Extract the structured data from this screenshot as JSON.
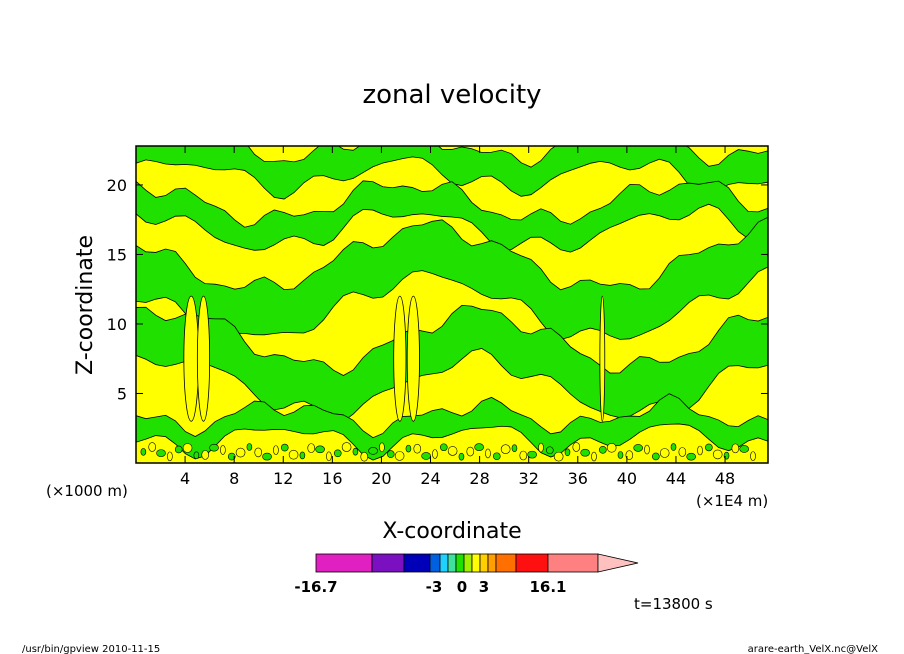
{
  "chart_data": {
    "type": "heatmap",
    "title": "zonal velocity",
    "xlabel": "X-coordinate",
    "ylabel": "Z-coordinate",
    "x_unit_left": "(×1000 m)",
    "x_unit_right": "(×1E4 m)",
    "xlim": [
      0,
      51.5
    ],
    "ylim": [
      0,
      22.8
    ],
    "xticks": [
      "4",
      "8",
      "12",
      "16",
      "20",
      "24",
      "28",
      "32",
      "36",
      "40",
      "44",
      "48"
    ],
    "yticks": [
      "5",
      "10",
      "15",
      "20"
    ],
    "colorbar": {
      "colors": [
        "#e020c0",
        "#7a10c0",
        "#0000b8",
        "#0060e0",
        "#20d0ff",
        "#40e0a0",
        "#20e000",
        "#a0f000",
        "#ffff00",
        "#ffd000",
        "#ffa000",
        "#ff7000",
        "#ff1010",
        "#ff8080",
        "#ffc0c0"
      ],
      "tick_labels": [
        "-16.7",
        "-3",
        "0",
        "3",
        "16.1"
      ]
    },
    "field_colors": {
      "positive": "#ffff00",
      "negative": "#20e000"
    },
    "time_label": "t=13800 s",
    "footer_left": "/usr/bin/gpview  2010-11-15",
    "footer_right": "arare-earth_VelX.nc@VelX"
  }
}
